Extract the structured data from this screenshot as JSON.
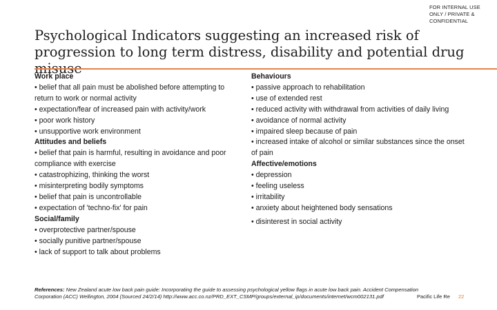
{
  "confidential": "FOR INTERNAL USE ONLY / PRIVATE & CONFIDENTIAL",
  "title": "Psychological Indicators suggesting an increased risk of progression to long term distress, disability and potential drug misuse",
  "left_column": {
    "heading": "Work place",
    "items": [
      "• belief that all pain must be abolished before attempting to return to work or normal activity",
      "• expectation/fear of increased pain with activity/work",
      "• poor work history",
      "• unsupportive work environment"
    ],
    "heading2": "Attitudes and beliefs",
    "items2": [
      "• belief that pain is harmful, resulting in avoidance and poor compliance with exercise",
      "• catastrophizing, thinking the worst",
      "• misinterpreting bodily symptoms",
      "• belief that pain is uncontrollable",
      "• expectation of 'techno-fix' for pain"
    ],
    "heading3": "Social/family",
    "items3": [
      "• overprotective partner/spouse",
      "• socially punitive partner/spouse",
      "• lack of support to talk about problems"
    ]
  },
  "right_column": {
    "heading": "Behaviours",
    "items": [
      "• passive approach to rehabilitation",
      "• use of extended rest",
      "• reduced activity with withdrawal from activities of daily living",
      "• avoidance of normal activity",
      "• impaired sleep because of pain",
      "• increased intake of alcohol or similar substances since the onset of pain"
    ],
    "heading2": "Affective/emotions",
    "items2": [
      "• depression",
      "• feeling useless",
      "• irritability",
      "• anxiety about heightened body sensations",
      "• disinterest in social activity"
    ]
  },
  "references": {
    "label": "References:",
    "text": " New Zealand acute low back pain guide: Incorporating the guide to assessing psychological yellow flags in acute low back pain. Accident Compensation Corporation (ACC) Wellington, 2004 (Sourced 24/2/14) http://www.acc.co.nz/PRD_EXT_CSMP/groups/external_ip/documents/internet/wcm002131.pdf"
  },
  "brand": "Pacific Life Re",
  "page_number": "22",
  "colors": {
    "accent": "#e5824a",
    "page_number": "#d8823c"
  }
}
